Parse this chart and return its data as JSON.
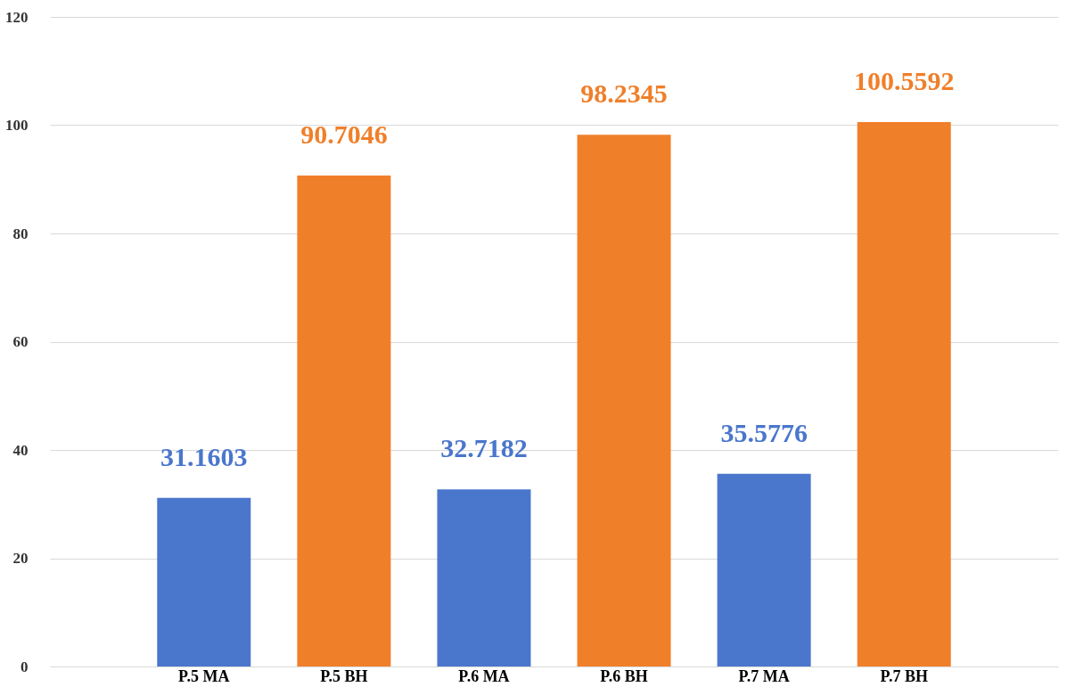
{
  "chart_data": {
    "type": "bar",
    "categories": [
      "P.5 MA",
      "P.5 BH",
      "P.6 MA",
      "P.6 BH",
      "P.7 MA",
      "P.7 BH"
    ],
    "values": [
      31.1603,
      90.7046,
      32.7182,
      98.2345,
      35.5776,
      100.5592
    ],
    "colors": [
      "#4a76cc",
      "#f07f2a",
      "#4a76cc",
      "#f07f2a",
      "#4a76cc",
      "#f07f2a"
    ],
    "ylim": [
      0,
      120
    ],
    "yticks": [
      0,
      20,
      40,
      60,
      80,
      100,
      120
    ],
    "grid": "y",
    "data_labels": true
  }
}
